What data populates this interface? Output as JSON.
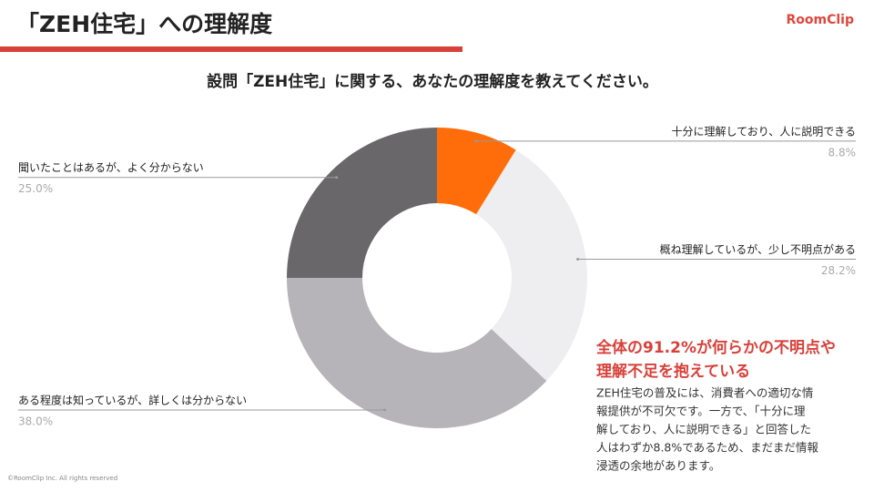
{
  "logo": "RoomClip",
  "footer": "©RoomClip Inc. All rights reserved",
  "chart_data": {
    "type": "donut",
    "title": "「ZEH住宅」への理解度",
    "subtitle": "設問「ZEH住宅」に関する、あなたの理解度を教えてください。",
    "categories": [
      "十分に理解しており、人に説明できる",
      "概ね理解しているが、少し不明点がある",
      "ある程度は知っているが、詳しくは分からない",
      "聞いたことはあるが、よく分からない"
    ],
    "values": [
      8.8,
      28.2,
      38.0,
      25.0
    ],
    "value_labels": [
      "8.8%",
      "28.2%",
      "38.0%",
      "25.0%"
    ],
    "colors": [
      "#ff6d0a",
      "#eeedf0",
      "#b6b4b9",
      "#6a676b"
    ],
    "annotation": {
      "heading": [
        "全体の91.2%が何らかの不明点や",
        "理解不足を抱えている"
      ],
      "body": [
        "ZEH住宅の普及には、消費者への適切な情",
        "報提供が不可欠です。一方で、「十分に理",
        "解しており、人に説明できる」と回答した",
        "人はわずか8.8%であるため、まだまだ情報",
        "浸透の余地があります。"
      ]
    }
  }
}
